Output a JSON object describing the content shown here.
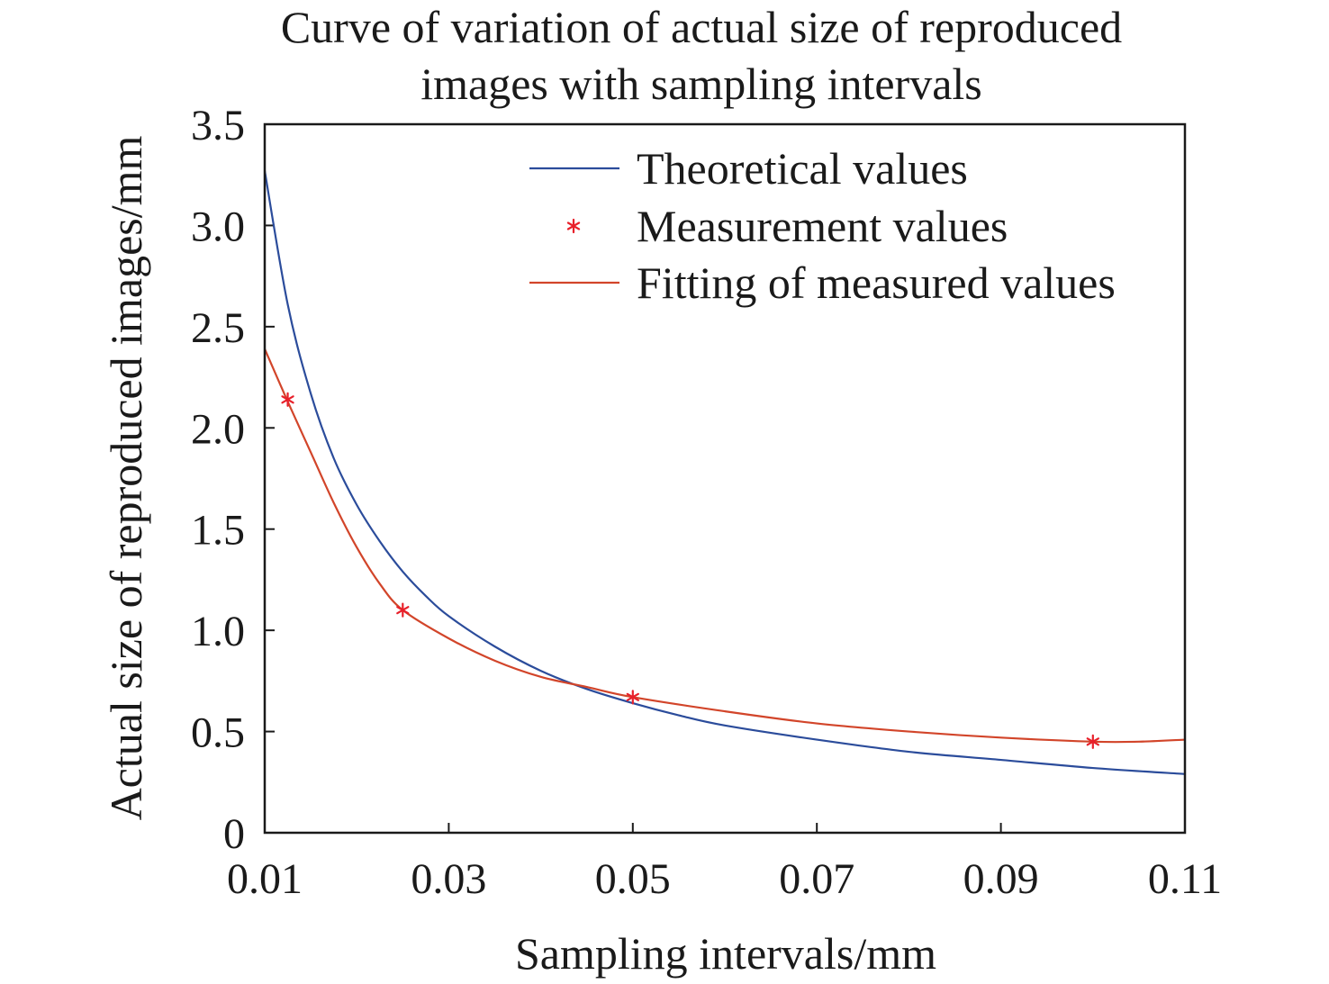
{
  "chart_data": {
    "type": "line",
    "title_lines": [
      "Curve of variation of actual size of reproduced",
      "images with sampling intervals"
    ],
    "xlabel": "Sampling intervals/mm",
    "ylabel": "Actual size of reproduced images/mm",
    "xlim": [
      0.01,
      0.11
    ],
    "ylim": [
      0,
      3.5
    ],
    "x_ticks": [
      0.01,
      0.03,
      0.05,
      0.07,
      0.09,
      0.11
    ],
    "x_tick_labels": [
      "0.01",
      "0.03",
      "0.05",
      "0.07",
      "0.09",
      "0.11"
    ],
    "y_ticks": [
      0,
      0.5,
      1.0,
      1.5,
      2.0,
      2.5,
      3.0,
      3.5
    ],
    "y_tick_labels": [
      "0",
      "0.5",
      "1.0",
      "1.5",
      "2.0",
      "2.5",
      "3.0",
      "3.5"
    ],
    "grid": false,
    "legend_position": "top-right",
    "series": [
      {
        "name": "Theoretical values",
        "kind": "line",
        "color": "#2b4c9b",
        "x": [
          0.01,
          0.0125,
          0.015,
          0.0175,
          0.02,
          0.0225,
          0.025,
          0.0275,
          0.03,
          0.035,
          0.04,
          0.045,
          0.05,
          0.055,
          0.06,
          0.07,
          0.08,
          0.09,
          0.1,
          0.11
        ],
        "y": [
          3.27,
          2.61,
          2.17,
          1.85,
          1.62,
          1.44,
          1.29,
          1.17,
          1.07,
          0.92,
          0.8,
          0.71,
          0.64,
          0.58,
          0.53,
          0.46,
          0.4,
          0.36,
          0.32,
          0.29
        ]
      },
      {
        "name": "Measurement values",
        "kind": "scatter",
        "marker": "*",
        "color": "#e8202a",
        "x": [
          0.0125,
          0.025,
          0.05,
          0.1
        ],
        "y": [
          2.14,
          1.1,
          0.67,
          0.45
        ]
      },
      {
        "name": "Fitting of measured values",
        "kind": "line",
        "color": "#d2452a",
        "x": [
          0.01,
          0.0125,
          0.015,
          0.0175,
          0.02,
          0.0225,
          0.025,
          0.03,
          0.035,
          0.04,
          0.045,
          0.05,
          0.06,
          0.07,
          0.08,
          0.09,
          0.1,
          0.105,
          0.11
        ],
        "y": [
          2.39,
          2.13,
          1.88,
          1.63,
          1.41,
          1.23,
          1.1,
          0.96,
          0.85,
          0.77,
          0.72,
          0.67,
          0.6,
          0.54,
          0.5,
          0.47,
          0.45,
          0.45,
          0.46
        ]
      }
    ]
  }
}
